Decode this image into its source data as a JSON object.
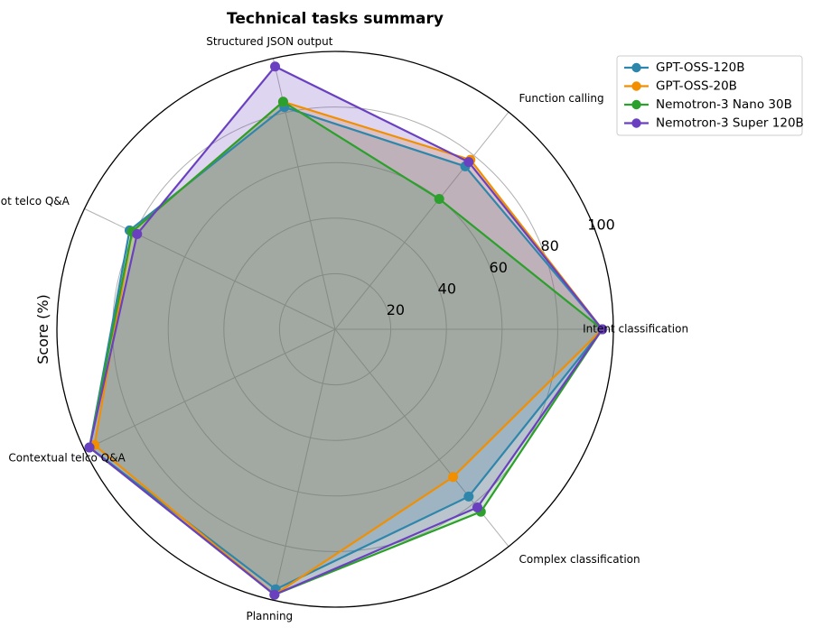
{
  "chart_data": {
    "type": "radar",
    "title": "Technical tasks summary",
    "ylabel": "Score (%)",
    "categories": [
      "Intent classification",
      "Function calling",
      "Structured JSON output",
      "Zero-shot telco Q&A",
      "Contextual telco Q&A",
      "Planning",
      "Complex classification"
    ],
    "rticks": [
      "20",
      "40",
      "60",
      "80",
      "100"
    ],
    "rtick_values": [
      20,
      40,
      60,
      80,
      100
    ],
    "rlim": [
      0,
      100
    ],
    "grid": true,
    "legend_position": "top-right",
    "series": [
      {
        "name": "GPT-OSS-120B",
        "color": "#2e86ab",
        "values": [
          96,
          75,
          82,
          82,
          98,
          96,
          77
        ]
      },
      {
        "name": "GPT-OSS-20B",
        "color": "#f18f01",
        "values": [
          96,
          78,
          84,
          81,
          96,
          98,
          68
        ]
      },
      {
        "name": "Nemotron-3 Nano 30B",
        "color": "#2ca02c",
        "values": [
          96,
          60,
          84,
          81,
          98,
          98,
          84
        ]
      },
      {
        "name": "Nemotron-3 Super 120B",
        "color": "#6a40c0",
        "values": [
          96,
          77,
          97,
          79,
          98,
          98,
          82
        ]
      }
    ]
  }
}
